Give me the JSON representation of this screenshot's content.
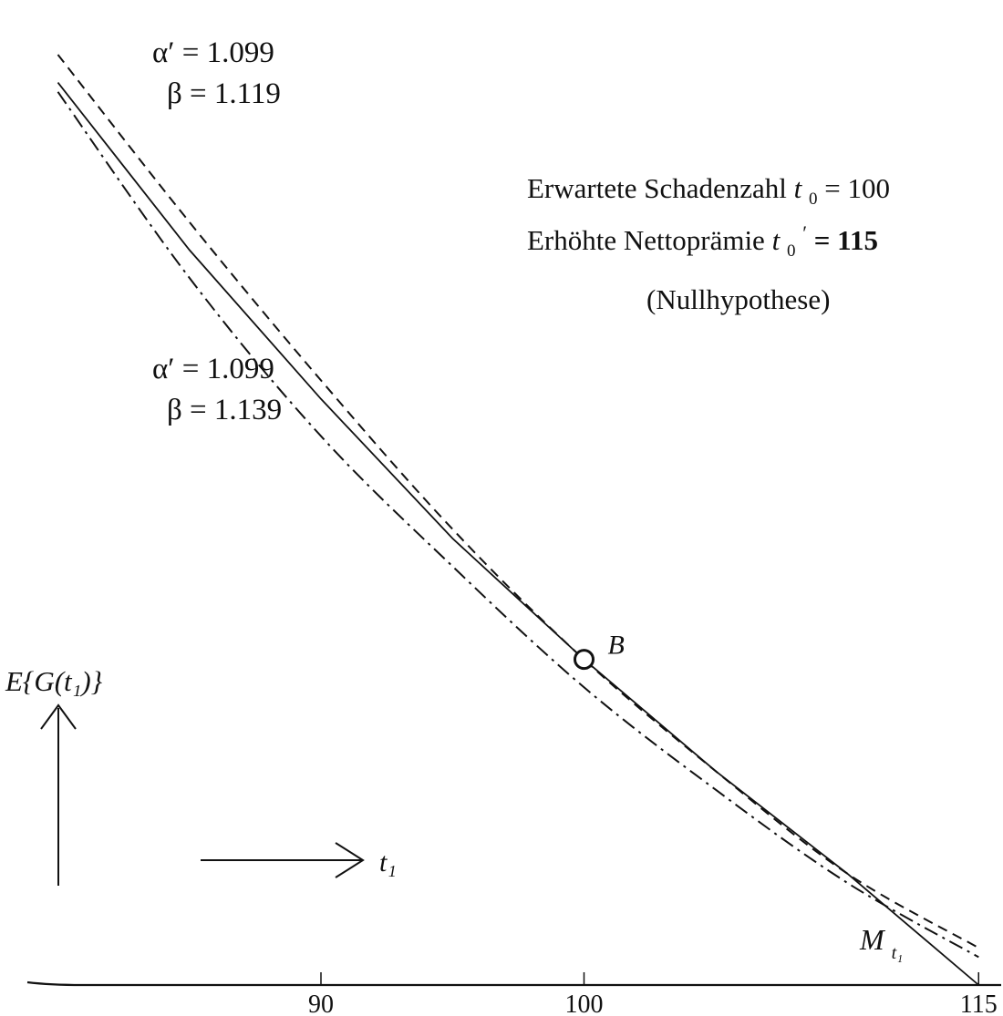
{
  "chart_data": {
    "type": "line",
    "x_axis": {
      "range": [
        80,
        116
      ],
      "ticks": [
        90,
        100,
        115
      ],
      "tick_labels": [
        "90",
        "100",
        "115"
      ],
      "label": "t₁"
    },
    "y_axis": {
      "label": "E{G(t₁)}",
      "numeric_labels_shown": false
    },
    "series": [
      {
        "style": "dashed",
        "alpha_prime": "α′ = 1.099",
        "beta": "β = 1.119",
        "x": [
          80,
          85,
          90,
          95,
          100,
          105,
          110,
          115
        ],
        "y": [
          1.0,
          0.82,
          0.65,
          0.49,
          0.35,
          0.23,
          0.12,
          0.04
        ]
      },
      {
        "style": "dash-dot",
        "alpha_prime": "α′ = 1.099",
        "beta": "β = 1.139",
        "x": [
          80,
          85,
          90,
          95,
          100,
          105,
          110,
          115
        ],
        "y": [
          0.96,
          0.76,
          0.59,
          0.45,
          0.32,
          0.21,
          0.11,
          0.03
        ]
      },
      {
        "style": "solid",
        "x": [
          80,
          85,
          90,
          95,
          100,
          105,
          110,
          115
        ],
        "y": [
          0.97,
          0.79,
          0.63,
          0.48,
          0.35,
          0.23,
          0.12,
          0.0
        ]
      }
    ],
    "annotations": {
      "point_label": "B",
      "point_x": 100,
      "endpoint_label": "M",
      "endpoint_subscript": "t₁",
      "info_line1_text": "Erwartete Schadenzahl ",
      "info_line1_var": "t",
      "info_line1_sub": "0",
      "info_line1_value": " = 100",
      "info_line2_text": "Erhöhte Nettoprämie   ",
      "info_line2_var": "t",
      "info_line2_sub": "0",
      "info_line2_prime": "′",
      "info_line2_value": " = 115",
      "info_line3": "(Nullhypothese)"
    },
    "grid": false,
    "legend": "none"
  }
}
